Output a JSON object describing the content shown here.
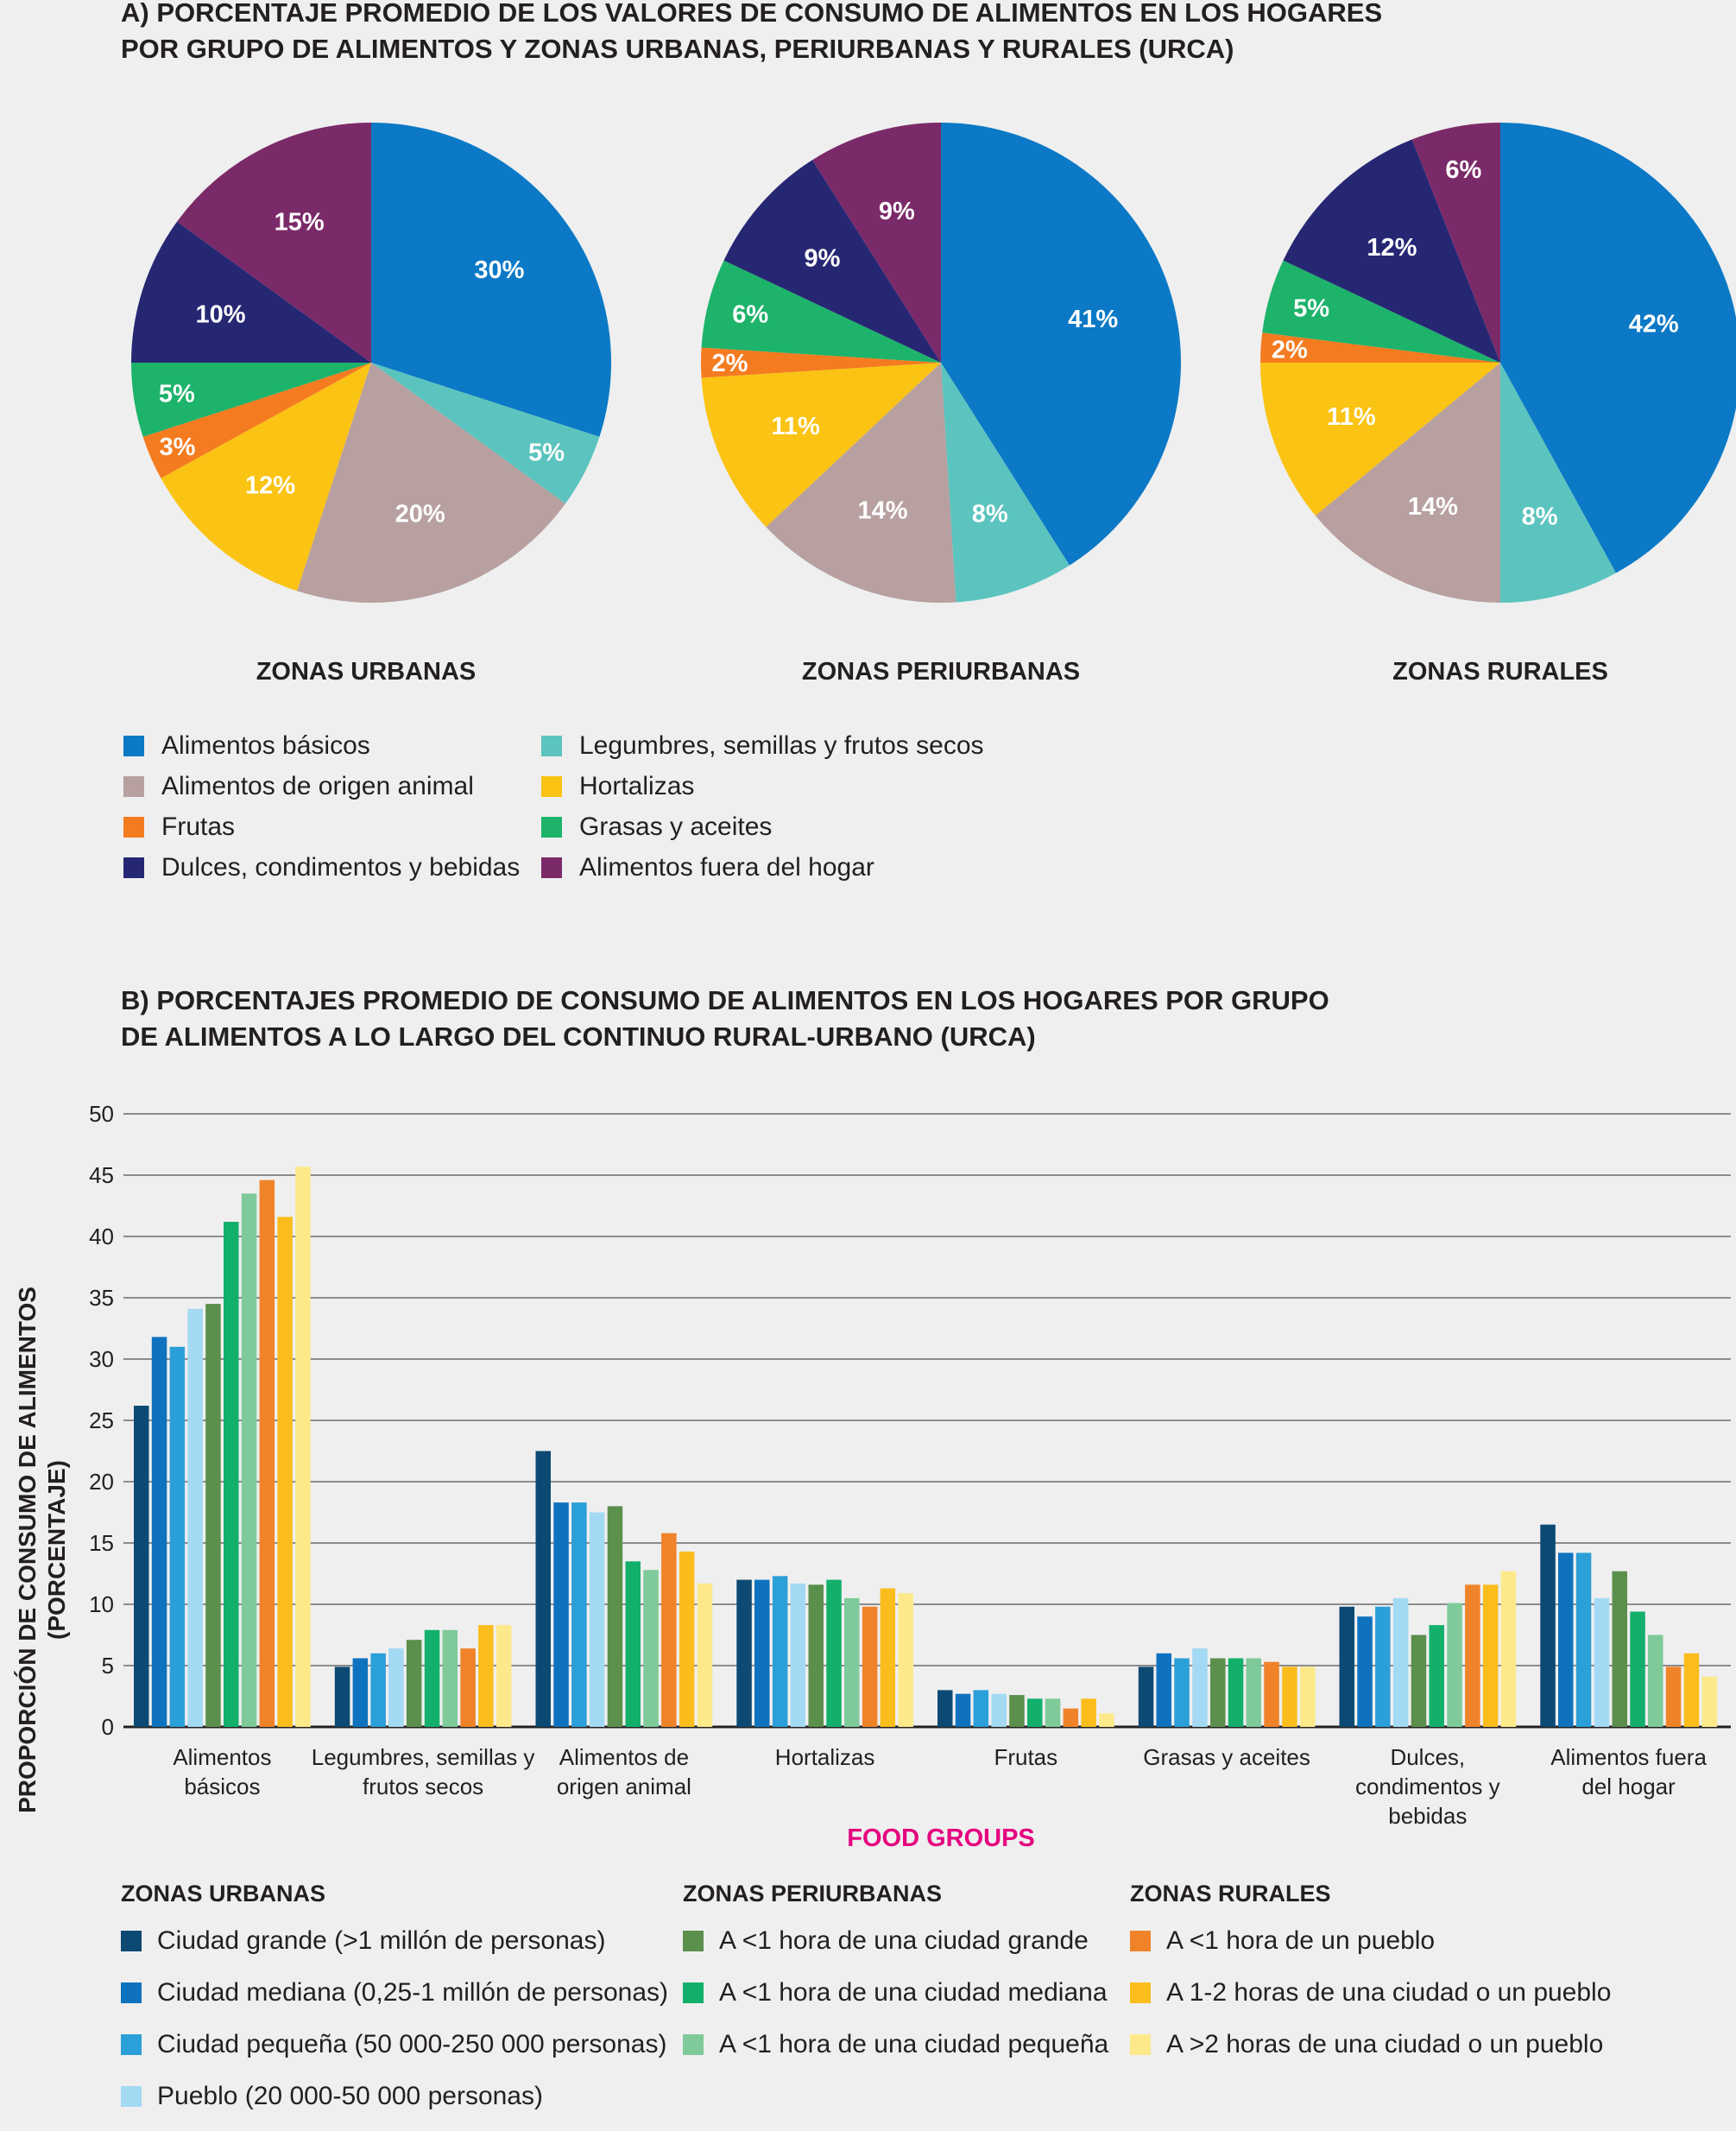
{
  "section_a": {
    "title_line1": "A)  PORCENTAJE PROMEDIO DE LOS VALORES DE CONSUMO DE ALIMENTOS EN LOS HOGARES",
    "title_line2": "POR GRUPO DE ALIMENTOS Y ZONAS URBANAS, PERIURBANAS Y RURALES (URCA)"
  },
  "section_b": {
    "title_line1": "B) PORCENTAJES PROMEDIO DE CONSUMO DE ALIMENTOS EN LOS HOGARES POR GRUPO",
    "title_line2": "DE ALIMENTOS A LO LARGO DEL CONTINUO RURAL-URBANO (URCA)"
  },
  "chart_data": [
    {
      "type": "pie",
      "title": "ZONAS URBANAS",
      "slices": [
        {
          "label": "Alimentos básicos",
          "value": 30,
          "text": "30%",
          "color": "#0b79c6"
        },
        {
          "label": "Legumbres, semillas y frutos secos",
          "value": 5,
          "text": "5%",
          "color": "#5cc4be"
        },
        {
          "label": "Alimentos de origen animal",
          "value": 20,
          "text": "20%",
          "color": "#b8a0a0"
        },
        {
          "label": "Hortalizas",
          "value": 12,
          "text": "12%",
          "color": "#fbc313"
        },
        {
          "label": "Frutas",
          "value": 3,
          "text": "3%",
          "color": "#f47b20"
        },
        {
          "label": "Grasas y aceites",
          "value": 5,
          "text": "5%",
          "color": "#1db36b"
        },
        {
          "label": "Dulces, condimentos y bebidas",
          "value": 10,
          "text": "10%",
          "color": "#262773"
        },
        {
          "label": "Alimentos fuera del hogar",
          "value": 15,
          "text": "15%",
          "color": "#7b2a69"
        }
      ]
    },
    {
      "type": "pie",
      "title": "ZONAS PERIURBANAS",
      "slices": [
        {
          "label": "Alimentos básicos",
          "value": 41,
          "text": "41%",
          "color": "#0b79c6"
        },
        {
          "label": "Legumbres, semillas y frutos secos",
          "value": 8,
          "text": "8%",
          "color": "#5cc4be"
        },
        {
          "label": "Alimentos de origen animal",
          "value": 14,
          "text": "14%",
          "color": "#b8a0a0"
        },
        {
          "label": "Hortalizas",
          "value": 11,
          "text": "11%",
          "color": "#fbc313"
        },
        {
          "label": "Frutas",
          "value": 2,
          "text": "2%",
          "color": "#f47b20"
        },
        {
          "label": "Grasas y aceites",
          "value": 6,
          "text": "6%",
          "color": "#1db36b"
        },
        {
          "label": "Dulces, condimentos y bebidas",
          "value": 9,
          "text": "9%",
          "color": "#262773"
        },
        {
          "label": "Alimentos fuera del hogar",
          "value": 9,
          "text": "9%",
          "color": "#7b2a69"
        }
      ]
    },
    {
      "type": "pie",
      "title": "ZONAS RURALES",
      "slices": [
        {
          "label": "Alimentos básicos",
          "value": 42,
          "text": "42%",
          "color": "#0b79c6"
        },
        {
          "label": "Legumbres, semillas y frutos secos",
          "value": 8,
          "text": "8%",
          "color": "#5cc4be"
        },
        {
          "label": "Alimentos de origen animal",
          "value": 14,
          "text": "14%",
          "color": "#b8a0a0"
        },
        {
          "label": "Hortalizas",
          "value": 11,
          "text": "11%",
          "color": "#fbc313"
        },
        {
          "label": "Frutas",
          "value": 2,
          "text": "2%",
          "color": "#f47b20"
        },
        {
          "label": "Grasas y aceites",
          "value": 5,
          "text": "5%",
          "color": "#1db36b"
        },
        {
          "label": "Dulces, condimentos y bebidas",
          "value": 12,
          "text": "12%",
          "color": "#262773"
        },
        {
          "label": "Alimentos fuera del hogar",
          "value": 6,
          "text": "6%",
          "color": "#7b2a69"
        }
      ]
    },
    {
      "type": "bar",
      "categories": [
        "Alimentos básicos",
        "Legumbres, semillas y frutos secos",
        "Alimentos de origen animal",
        "Hortalizas",
        "Frutas",
        "Grasas y aceites",
        "Dulces, condimentos y bebidas",
        "Alimentos fuera del hogar"
      ],
      "category_labels": [
        [
          "Alimentos",
          "básicos"
        ],
        [
          "Legumbres, semillas y",
          "frutos secos"
        ],
        [
          "Alimentos de",
          "origen animal"
        ],
        [
          "Hortalizas"
        ],
        [
          "Frutas"
        ],
        [
          "Grasas y aceites"
        ],
        [
          "Dulces,",
          "condimentos y",
          "bebidas"
        ],
        [
          "Alimentos fuera",
          "del hogar"
        ]
      ],
      "ylabel_line1": "PROPORCIÓN DE CONSUMO DE ALIMENTOS",
      "ylabel_line2": "(PORCENTAJE)",
      "xlabel": "FOOD GROUPS",
      "ylim": [
        0,
        50
      ],
      "yticks": [
        0,
        5,
        10,
        15,
        20,
        25,
        30,
        35,
        40,
        45,
        50
      ],
      "grid": true,
      "series": [
        {
          "name": "Ciudad grande (>1 millón de personas)",
          "color": "#0d4a73",
          "values": [
            26.2,
            4.9,
            22.5,
            12.0,
            3.0,
            4.9,
            9.8,
            16.5
          ]
        },
        {
          "name": "Ciudad mediana (0,25-1 millón de personas)",
          "color": "#0e72bf",
          "values": [
            31.8,
            5.6,
            18.3,
            12.0,
            2.7,
            6.0,
            9.0,
            14.2
          ]
        },
        {
          "name": "Ciudad pequeña (50 000-250 000 personas)",
          "color": "#2b9fd8",
          "values": [
            31.0,
            6.0,
            18.3,
            12.3,
            3.0,
            5.6,
            9.8,
            14.2
          ]
        },
        {
          "name": "Pueblo (20 000-50 000 personas)",
          "color": "#a3d9f3",
          "values": [
            34.1,
            6.4,
            17.5,
            11.7,
            2.7,
            6.4,
            10.5,
            10.5
          ]
        },
        {
          "name": "A <1 hora de una ciudad grande",
          "color": "#5a8f4c",
          "values": [
            34.5,
            7.1,
            18.0,
            11.6,
            2.6,
            5.6,
            7.5,
            12.7
          ]
        },
        {
          "name": "A <1 hora de una ciudad mediana",
          "color": "#13b06c",
          "values": [
            41.2,
            7.9,
            13.5,
            12.0,
            2.3,
            5.6,
            8.3,
            9.4
          ]
        },
        {
          "name": "A <1 hora de una ciudad pequeña",
          "color": "#7fca9a",
          "values": [
            43.5,
            7.9,
            12.8,
            10.5,
            2.3,
            5.6,
            10.1,
            7.5
          ]
        },
        {
          "name": "A <1 hora de un pueblo",
          "color": "#f0832a",
          "values": [
            44.6,
            6.4,
            15.8,
            9.8,
            1.5,
            5.3,
            11.6,
            4.9
          ]
        },
        {
          "name": "A 1-2 horas de una ciudad o un pueblo",
          "color": "#fbbd1c",
          "values": [
            41.6,
            8.3,
            14.3,
            11.3,
            2.3,
            4.9,
            11.6,
            6.0
          ]
        },
        {
          "name": "A >2 horas de una ciudad o un pueblo",
          "color": "#fde98a",
          "values": [
            45.7,
            8.3,
            11.7,
            10.9,
            1.1,
            4.9,
            12.7,
            4.1
          ]
        }
      ]
    }
  ],
  "legend_a": [
    {
      "label": "Alimentos básicos",
      "color": "#0b79c6"
    },
    {
      "label": "Legumbres, semillas y frutos secos",
      "color": "#5cc4be"
    },
    {
      "label": "Alimentos de origen animal",
      "color": "#b8a0a0"
    },
    {
      "label": "Hortalizas",
      "color": "#fbc313"
    },
    {
      "label": "Frutas",
      "color": "#f47b20"
    },
    {
      "label": "Grasas y aceites",
      "color": "#1db36b"
    },
    {
      "label": "Dulces, condimentos y bebidas",
      "color": "#262773"
    },
    {
      "label": "Alimentos fuera del hogar",
      "color": "#7b2a69"
    }
  ],
  "legend_b": {
    "urban": {
      "heading": "ZONAS URBANAS",
      "items": [
        {
          "label": "Ciudad grande (>1 millón de personas)",
          "color": "#0d4a73"
        },
        {
          "label": "Ciudad mediana (0,25-1 millón de personas)",
          "color": "#0e72bf"
        },
        {
          "label": "Ciudad pequeña (50 000-250 000 personas)",
          "color": "#2b9fd8"
        },
        {
          "label": "Pueblo (20 000-50 000 personas)",
          "color": "#a3d9f3"
        }
      ]
    },
    "periurban": {
      "heading": "ZONAS PERIURBANAS",
      "items": [
        {
          "label": "A <1 hora de una ciudad grande",
          "color": "#5a8f4c"
        },
        {
          "label": "A <1 hora de una ciudad mediana",
          "color": "#13b06c"
        },
        {
          "label": "A <1 hora de una ciudad pequeña",
          "color": "#7fca9a"
        }
      ]
    },
    "rural": {
      "heading": "ZONAS RURALES",
      "items": [
        {
          "label": "A <1 hora de un pueblo",
          "color": "#f0832a"
        },
        {
          "label": "A 1-2 horas de una ciudad o un pueblo",
          "color": "#fbbd1c"
        },
        {
          "label": "A >2 horas de una ciudad o un pueblo",
          "color": "#fde98a"
        }
      ]
    }
  }
}
